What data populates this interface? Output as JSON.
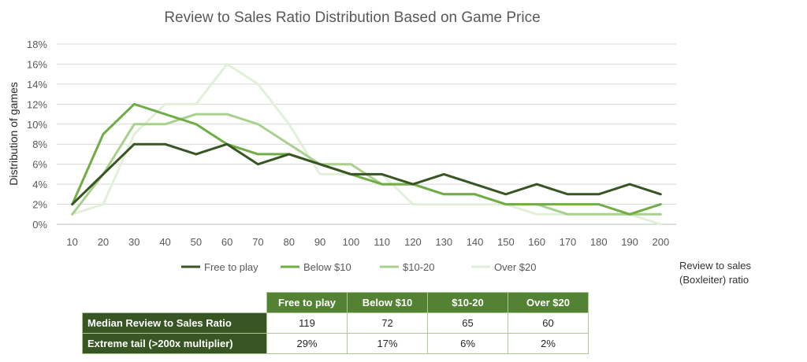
{
  "chart_data": {
    "type": "line",
    "title": "Review to Sales Ratio Distribution Based on Game Price",
    "ylabel": "Distribution of games",
    "xlabel": "Review to sales (Boxleiter) ratio",
    "x": [
      10,
      20,
      30,
      40,
      50,
      60,
      70,
      80,
      90,
      100,
      110,
      120,
      130,
      140,
      150,
      160,
      170,
      180,
      190,
      200
    ],
    "ylim": [
      0,
      18
    ],
    "yticks": [
      "0%",
      "2%",
      "4%",
      "6%",
      "8%",
      "10%",
      "12%",
      "14%",
      "16%",
      "18%"
    ],
    "grid": true,
    "legend_position": "bottom",
    "series": [
      {
        "name": "Free to play",
        "color": "#375623",
        "values": [
          2,
          5,
          8,
          8,
          7,
          8,
          6,
          7,
          6,
          5,
          5,
          4,
          5,
          4,
          3,
          4,
          3,
          3,
          4,
          3
        ]
      },
      {
        "name": "Below $10",
        "color": "#70ad47",
        "values": [
          2,
          9,
          12,
          11,
          10,
          8,
          7,
          7,
          6,
          5,
          4,
          4,
          3,
          3,
          2,
          2,
          2,
          2,
          1,
          2
        ]
      },
      {
        "name": "$10-20",
        "color": "#a9d18e",
        "values": [
          1,
          5,
          10,
          10,
          11,
          11,
          10,
          8,
          6,
          6,
          4,
          4,
          3,
          3,
          2,
          2,
          1,
          1,
          1,
          1
        ]
      },
      {
        "name": "Over $20",
        "color": "#e2f0d9",
        "values": [
          1,
          2,
          9,
          12,
          12,
          16,
          14,
          10,
          5,
          5,
          5,
          2,
          2,
          2,
          2,
          1,
          1,
          1,
          1,
          0
        ]
      }
    ]
  },
  "table": {
    "columns": [
      "Free to play",
      "Below $10",
      "$10-20",
      "Over $20"
    ],
    "rows": [
      {
        "label": "Median Review to Sales Ratio",
        "values": [
          "119",
          "72",
          "65",
          "60"
        ]
      },
      {
        "label": "Extreme tail (>200x multiplier)",
        "values": [
          "29%",
          "17%",
          "6%",
          "2%"
        ]
      }
    ]
  }
}
